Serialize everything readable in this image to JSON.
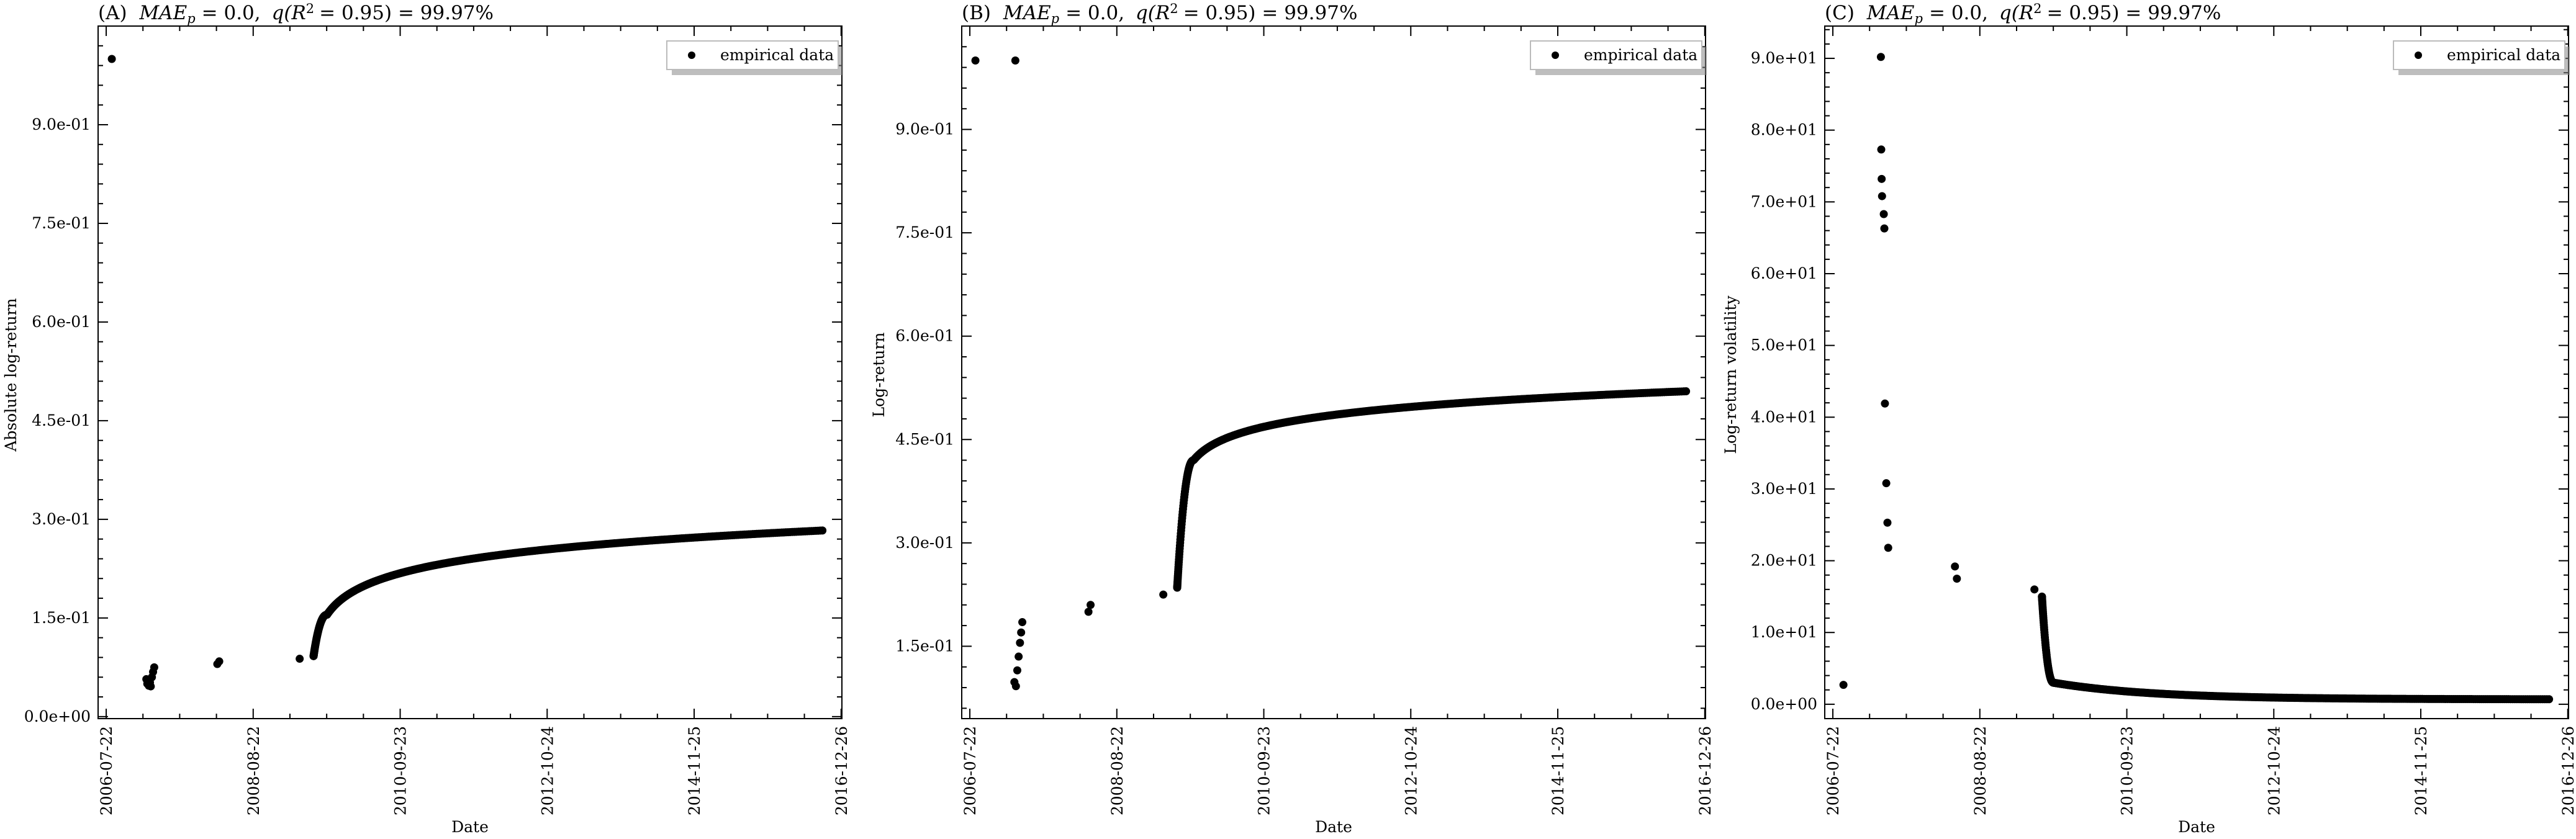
{
  "chart_data": [
    {
      "type": "scatter",
      "title": "(A) MAE_p = 0.0, q(R^2 = 0.95) = 99.97%",
      "title_parts": {
        "panel": "(A)",
        "mae": "MAE",
        "sub": "p",
        "eq": "= 0.0,",
        "q": "q(R",
        "sup": "2",
        "rest": "= 0.95) = 99.97%"
      },
      "xlabel": "Date",
      "ylabel": "Absolute log-return",
      "x_ticks": [
        "2006-07-22",
        "2008-08-22",
        "2010-09-23",
        "2012-10-24",
        "2014-11-25",
        "2016-12-26"
      ],
      "y_ticks": [
        "0.0e+00",
        "1.5e-01",
        "3.0e-01",
        "4.5e-01",
        "6.0e-01",
        "7.5e-01",
        "9.0e-01"
      ],
      "y_tick_values": [
        0.0,
        0.15,
        0.3,
        0.45,
        0.6,
        0.75,
        0.9
      ],
      "ylim": [
        -0.003,
        1.05
      ],
      "xlim": [
        "2006-06-10",
        "2016-12-30"
      ],
      "legend": {
        "label": "empirical data",
        "position": "top-right"
      },
      "series": [
        {
          "name": "empirical data",
          "points": [
            [
              "2006-08-20",
              1.0
            ],
            [
              "2007-02-15",
              0.057
            ],
            [
              "2007-02-20",
              0.05
            ],
            [
              "2007-02-28",
              0.047
            ],
            [
              "2007-03-06",
              0.052
            ],
            [
              "2007-03-10",
              0.046
            ],
            [
              "2007-03-16",
              0.06
            ],
            [
              "2007-03-22",
              0.068
            ],
            [
              "2007-03-28",
              0.075
            ],
            [
              "2008-02-18",
              0.08
            ],
            [
              "2008-02-28",
              0.084
            ],
            [
              "2009-04-20",
              0.088
            ]
          ],
          "curve": {
            "start": "2009-07-01",
            "end": "2016-09-20",
            "y0": 0.092,
            "y_knee": 0.155,
            "y_end": 0.283,
            "rise_days": 70,
            "shape": "log"
          }
        }
      ]
    },
    {
      "type": "scatter",
      "title": "(B) MAE_p = 0.0, q(R^2 = 0.95) = 99.97%",
      "title_parts": {
        "panel": "(B)",
        "mae": "MAE",
        "sub": "p",
        "eq": "= 0.0,",
        "q": "q(R",
        "sup": "2",
        "rest": "= 0.95) = 99.97%"
      },
      "xlabel": "Date",
      "ylabel": "Log-return",
      "x_ticks": [
        "2006-07-22",
        "2008-08-22",
        "2010-09-23",
        "2012-10-24",
        "2014-11-25",
        "2016-12-26"
      ],
      "y_ticks": [
        "1.5e-01",
        "3.0e-01",
        "4.5e-01",
        "6.0e-01",
        "7.5e-01",
        "9.0e-01"
      ],
      "y_tick_values": [
        0.15,
        0.3,
        0.45,
        0.6,
        0.75,
        0.9
      ],
      "ylim": [
        0.045,
        1.05
      ],
      "xlim": [
        "2006-06-10",
        "2016-12-30"
      ],
      "legend": {
        "label": "empirical data",
        "position": "top-right"
      },
      "series": [
        {
          "name": "empirical data",
          "points": [
            [
              "2006-08-20",
              1.0
            ],
            [
              "2007-03-15",
              1.0
            ],
            [
              "2007-03-10",
              0.098
            ],
            [
              "2007-03-18",
              0.092
            ],
            [
              "2007-03-25",
              0.115
            ],
            [
              "2007-04-01",
              0.135
            ],
            [
              "2007-04-08",
              0.155
            ],
            [
              "2007-04-14",
              0.17
            ],
            [
              "2007-04-20",
              0.185
            ],
            [
              "2008-03-28",
              0.2
            ],
            [
              "2008-04-08",
              0.21
            ],
            [
              "2009-04-20",
              0.225
            ]
          ],
          "curve": {
            "start": "2009-07-01",
            "end": "2016-09-20",
            "y0": 0.235,
            "y_knee": 0.42,
            "y_end": 0.52,
            "rise_days": 85,
            "shape": "log"
          }
        }
      ]
    },
    {
      "type": "scatter",
      "title": "(C) MAE_p = 0.0, q(R^2 = 0.95) = 99.97%",
      "title_parts": {
        "panel": "(C)",
        "mae": "MAE",
        "sub": "p",
        "eq": "= 0.0,",
        "q": "q(R",
        "sup": "2",
        "rest": "= 0.95) = 99.97%"
      },
      "xlabel": "Date",
      "ylabel": "Log-return volatility",
      "x_ticks": [
        "2006-07-22",
        "2008-08-22",
        "2010-09-23",
        "2012-10-24",
        "2014-11-25",
        "2016-12-26"
      ],
      "y_ticks": [
        "0.0e+00",
        "1.0e+01",
        "2.0e+01",
        "3.0e+01",
        "4.0e+01",
        "5.0e+01",
        "6.0e+01",
        "7.0e+01",
        "8.0e+01",
        "9.0e+01"
      ],
      "y_tick_values": [
        0,
        10,
        20,
        30,
        40,
        50,
        60,
        70,
        80,
        90
      ],
      "ylim": [
        -2,
        94.5
      ],
      "xlim": [
        "2006-06-10",
        "2016-12-30"
      ],
      "legend": {
        "label": "empirical data",
        "position": "top-right"
      },
      "series": [
        {
          "name": "empirical data",
          "points": [
            [
              "2006-09-15",
              2.7
            ],
            [
              "2007-03-28",
              90.2
            ],
            [
              "2007-03-30",
              77.3
            ],
            [
              "2007-04-01",
              73.2
            ],
            [
              "2007-04-03",
              70.8
            ],
            [
              "2007-04-12",
              68.3
            ],
            [
              "2007-04-15",
              66.3
            ],
            [
              "2007-04-18",
              41.9
            ],
            [
              "2007-04-25",
              30.8
            ],
            [
              "2007-05-01",
              25.3
            ],
            [
              "2007-05-05",
              21.8
            ],
            [
              "2008-04-15",
              19.2
            ],
            [
              "2008-04-25",
              17.5
            ],
            [
              "2009-06-01",
              16.0
            ]
          ],
          "curve": {
            "start": "2009-07-10",
            "end": "2016-09-20",
            "y0": 15.0,
            "y_knee": 3.0,
            "y_end": 0.7,
            "rise_days": 60,
            "shape": "decay"
          }
        }
      ]
    }
  ]
}
